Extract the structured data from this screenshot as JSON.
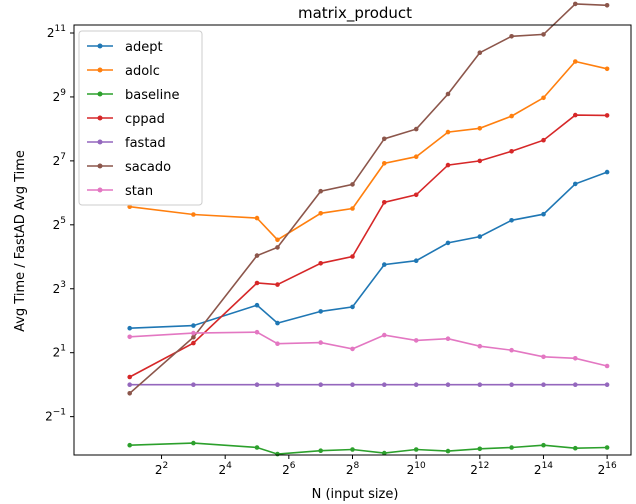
{
  "chart_data": {
    "type": "line",
    "title": "matrix_product",
    "xlabel": "N (input size)",
    "ylabel": "Avg Time / FastAD Avg Time",
    "x_scale": "log2",
    "y_scale": "log2",
    "xlim_log2": [
      -0.75,
      16.75
    ],
    "ylim_log2": [
      -2.2,
      11.25
    ],
    "x_tick_labels": [
      {
        "base": "2",
        "exp": "2",
        "log2": 2
      },
      {
        "base": "2",
        "exp": "4",
        "log2": 4
      },
      {
        "base": "2",
        "exp": "6",
        "log2": 6
      },
      {
        "base": "2",
        "exp": "8",
        "log2": 8
      },
      {
        "base": "2",
        "exp": "10",
        "log2": 10
      },
      {
        "base": "2",
        "exp": "12",
        "log2": 12
      },
      {
        "base": "2",
        "exp": "14",
        "log2": 14
      },
      {
        "base": "2",
        "exp": "16",
        "log2": 16
      }
    ],
    "y_tick_labels": [
      {
        "base": "2",
        "exp": "−1",
        "log2": -1
      },
      {
        "base": "2",
        "exp": "1",
        "log2": 1
      },
      {
        "base": "2",
        "exp": "3",
        "log2": 3
      },
      {
        "base": "2",
        "exp": "5",
        "log2": 5
      },
      {
        "base": "2",
        "exp": "7",
        "log2": 7
      },
      {
        "base": "2",
        "exp": "9",
        "log2": 9
      },
      {
        "base": "2",
        "exp": "11",
        "log2": 11
      }
    ],
    "x": [
      2,
      8,
      32,
      50,
      128,
      256,
      512,
      1024,
      2048,
      4096,
      8192,
      16384,
      32768,
      65536
    ],
    "series": [
      {
        "name": "adept",
        "color": "#1f77b4",
        "values": [
          3.4,
          3.6,
          5.6,
          3.8,
          4.9,
          5.4,
          13.5,
          14.7,
          21.6,
          24.8,
          35.3,
          40.3,
          77.7,
          100.4
        ]
      },
      {
        "name": "adolc",
        "color": "#ff7f0e",
        "values": [
          47.4,
          40.0,
          37.0,
          23.1,
          41.1,
          45.6,
          121.4,
          140.0,
          239.0,
          259.4,
          337.8,
          502.4,
          1104.0,
          941.4
        ]
      },
      {
        "name": "baseline",
        "color": "#2ca02c",
        "values": [
          0.269,
          0.282,
          0.256,
          0.222,
          0.239,
          0.245,
          0.227,
          0.245,
          0.237,
          0.249,
          0.256,
          0.269,
          0.252,
          0.256
        ]
      },
      {
        "name": "cppad",
        "color": "#d62728",
        "values": [
          1.18,
          2.46,
          9.06,
          8.75,
          13.9,
          16.1,
          52.1,
          61.3,
          116.9,
          128.0,
          157.6,
          200.4,
          345.2,
          342.9
        ]
      },
      {
        "name": "fastad",
        "color": "#9467bd",
        "values": [
          1.0,
          1.0,
          1.0,
          1.0,
          1.0,
          1.0,
          1.0,
          1.0,
          1.0,
          1.0,
          1.0,
          1.0,
          1.0,
          1.0
        ]
      },
      {
        "name": "sacado",
        "color": "#8c564b",
        "values": [
          0.83,
          2.8,
          16.4,
          19.6,
          66.3,
          76.9,
          206.4,
          255.0,
          545.8,
          1335.6,
          1906.0,
          1986.0,
          3850.0,
          3735.0
        ]
      },
      {
        "name": "stan",
        "color": "#e377c2",
        "values": [
          2.82,
          3.06,
          3.12,
          2.43,
          2.49,
          2.17,
          2.93,
          2.61,
          2.71,
          2.3,
          2.11,
          1.83,
          1.77,
          1.5
        ]
      }
    ],
    "grid": false,
    "legend_position": "upper-left"
  }
}
